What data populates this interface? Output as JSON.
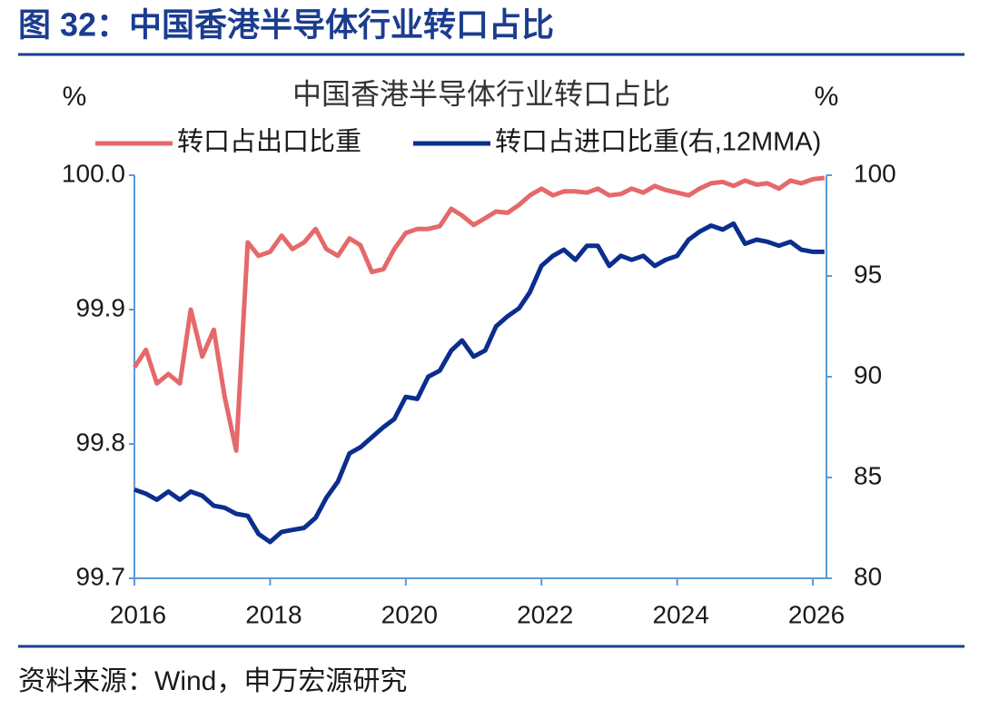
{
  "header": {
    "title": "图 32：中国香港半导体行业转口占比"
  },
  "source": "资料来源：Wind，申万宏源研究",
  "chart_data": {
    "type": "line",
    "title": "中国香港半导体行业转口占比",
    "ylabel": "%",
    "y2label": "%",
    "x": [
      2016.0,
      2016.17,
      2016.33,
      2016.5,
      2016.67,
      2016.83,
      2017.0,
      2017.17,
      2017.33,
      2017.5,
      2017.67,
      2017.83,
      2018.0,
      2018.17,
      2018.33,
      2018.5,
      2018.67,
      2018.83,
      2019.0,
      2019.17,
      2019.33,
      2019.5,
      2019.67,
      2019.83,
      2020.0,
      2020.17,
      2020.33,
      2020.5,
      2020.67,
      2020.83,
      2021.0,
      2021.17,
      2021.33,
      2021.5,
      2021.67,
      2021.83,
      2022.0,
      2022.17,
      2022.33,
      2022.5,
      2022.67,
      2022.83,
      2023.0,
      2023.17,
      2023.33,
      2023.5,
      2023.67,
      2023.83,
      2024.0,
      2024.17,
      2024.33,
      2024.5,
      2024.67,
      2024.83,
      2025.0,
      2025.17,
      2025.33,
      2025.5,
      2025.67,
      2025.83,
      2026.0,
      2026.17
    ],
    "xlim": [
      2016,
      2026.2
    ],
    "xticks": [
      2016,
      2018,
      2020,
      2022,
      2024,
      2026
    ],
    "ylim": [
      99.7,
      100.0
    ],
    "yticks": [
      {
        "value": 100.0,
        "label": "100.0"
      },
      99.9,
      99.8,
      99.7
    ],
    "y2lim": [
      80,
      100
    ],
    "y2ticks": [
      100,
      95,
      90,
      85,
      80
    ],
    "series": [
      {
        "name": "转口占出口比重",
        "color": "#e5696b",
        "values": [
          99.857,
          99.87,
          99.845,
          99.852,
          99.845,
          99.9,
          99.865,
          99.885,
          99.835,
          99.795,
          99.95,
          99.94,
          99.943,
          99.955,
          99.945,
          99.95,
          99.96,
          99.945,
          99.94,
          99.953,
          99.948,
          99.928,
          99.93,
          99.945,
          99.957,
          99.96,
          99.96,
          99.962,
          99.975,
          99.97,
          99.963,
          99.968,
          99.973,
          99.972,
          99.978,
          99.985,
          99.99,
          99.985,
          99.988,
          99.988,
          99.987,
          99.99,
          99.985,
          99.986,
          99.99,
          99.987,
          99.992,
          99.989,
          99.987,
          99.985,
          99.99,
          99.994,
          99.995,
          99.992,
          99.996,
          99.993,
          99.994,
          99.99,
          99.996,
          99.994,
          99.997,
          99.998
        ]
      },
      {
        "name": "转口占进口比重(右,12MMA)",
        "color": "#0b2e8e",
        "axis": "y2",
        "values": [
          84.4,
          84.2,
          83.9,
          84.3,
          83.9,
          84.3,
          84.1,
          83.6,
          83.5,
          83.2,
          83.1,
          82.2,
          81.8,
          82.3,
          82.4,
          82.5,
          83.0,
          84.0,
          84.8,
          86.2,
          86.5,
          87.0,
          87.5,
          87.9,
          89.0,
          88.9,
          90.0,
          90.3,
          91.3,
          91.8,
          91.0,
          91.3,
          92.5,
          93.0,
          93.4,
          94.2,
          95.5,
          96.0,
          96.3,
          95.8,
          96.5,
          96.5,
          95.5,
          96.0,
          95.8,
          96.0,
          95.5,
          95.8,
          96.0,
          96.8,
          97.2,
          97.5,
          97.3,
          97.6,
          96.6,
          96.8,
          96.7,
          96.5,
          96.7,
          96.3,
          96.2,
          96.2
        ]
      }
    ]
  }
}
